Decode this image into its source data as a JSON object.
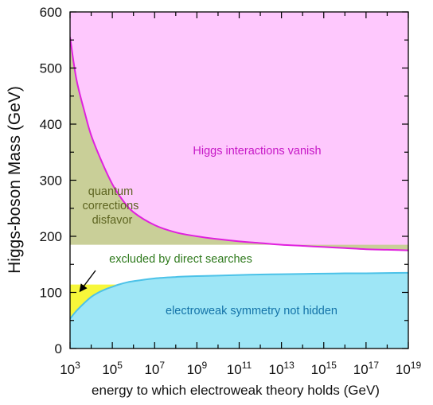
{
  "chart_data": {
    "type": "area",
    "xlabel": "energy to which electroweak theory holds (GeV)",
    "ylabel": "Higgs-boson Mass (GeV)",
    "x_scale": "log",
    "xlim": [
      1000,
      1e+19
    ],
    "ylim": [
      0,
      600
    ],
    "xticks": [
      1000,
      100000,
      10000000,
      1000000000,
      100000000000,
      10000000000000,
      1000000000000000,
      100000000000000000,
      10000000000000000000
    ],
    "xtick_labels": [
      {
        "base": "10",
        "exp": "3"
      },
      {
        "base": "10",
        "exp": "5"
      },
      {
        "base": "10",
        "exp": "7"
      },
      {
        "base": "10",
        "exp": "9"
      },
      {
        "base": "10",
        "exp": "11"
      },
      {
        "base": "10",
        "exp": "13"
      },
      {
        "base": "10",
        "exp": "15"
      },
      {
        "base": "10",
        "exp": "17"
      },
      {
        "base": "10",
        "exp": "19"
      }
    ],
    "yticks": [
      0,
      100,
      200,
      300,
      400,
      500,
      600
    ],
    "ytick_labels": [
      "0",
      "100",
      "200",
      "300",
      "400",
      "500",
      "600"
    ],
    "grid": false,
    "upper_bound_curve": {
      "x": [
        1000,
        2000,
        5000,
        10000,
        30000,
        100000,
        300000,
        1000000,
        10000000,
        100000000,
        1000000000,
        10000000000,
        100000000000,
        1000000000000,
        10000000000000,
        100000000000000,
        1000000000000000,
        10000000000000000,
        100000000000000000,
        1000000000000000000,
        10000000000000000000
      ],
      "y": [
        555,
        480,
        420,
        380,
        335,
        293,
        265,
        243,
        220,
        207,
        200,
        195,
        191,
        188,
        185,
        183,
        181,
        179,
        177,
        176,
        175
      ]
    },
    "lower_bound_curve": {
      "x": [
        1000,
        2000,
        5000,
        10000,
        20000,
        50000,
        100000,
        200000,
        500000,
        1000000,
        10000000,
        100000000,
        1000000000,
        10000000000,
        100000000000,
        1000000000000,
        10000000000000,
        100000000000000,
        1000000000000000,
        10000000000000000,
        100000000000000000,
        1000000000000000000,
        10000000000000000000
      ],
      "y": [
        53,
        67,
        82,
        92,
        99,
        106,
        110,
        114,
        118,
        120,
        125,
        127.5,
        129,
        130,
        131,
        132,
        132.5,
        133,
        133.5,
        134,
        134,
        134.5,
        135
      ]
    },
    "direct_search_limit": 114,
    "quantum_region_top": 185,
    "region_labels": {
      "upper": "Higgs interactions vanish",
      "quantum": [
        "quantum",
        "corrections",
        "disfavor"
      ],
      "excluded": "excluded by direct searches",
      "lower": "electroweak symmetry not hidden"
    },
    "colors": {
      "upper": "#fec8fd",
      "upper_line": "#e020de",
      "quantum": "#c9cf98",
      "excluded": "#f7f73a",
      "lower": "#9ee6f6",
      "lower_line": "#4cc2e8",
      "upper_text": "#c617c6",
      "quantum_text": "#5d6420",
      "excluded_text": "#2f7a1d",
      "lower_text": "#1473a8"
    }
  }
}
